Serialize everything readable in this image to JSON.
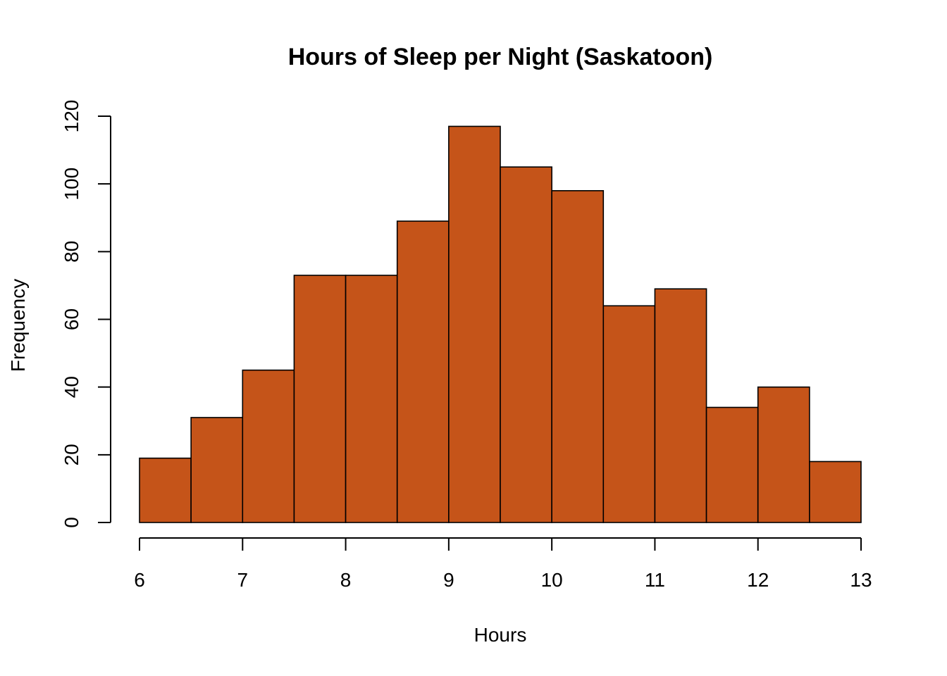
{
  "chart_data": {
    "type": "bar",
    "subtype": "histogram",
    "title": "Hours of Sleep per Night (Saskatoon)",
    "xlabel": "Hours",
    "ylabel": "Frequency",
    "bin_edges": [
      6,
      6.5,
      7,
      7.5,
      8,
      8.5,
      9,
      9.5,
      10,
      10.5,
      11,
      11.5,
      12,
      12.5,
      13
    ],
    "values": [
      19,
      31,
      45,
      73,
      73,
      89,
      117,
      105,
      98,
      64,
      69,
      34,
      40,
      18
    ],
    "xlim": [
      6,
      13
    ],
    "ylim": [
      0,
      120
    ],
    "x_ticks": [
      6,
      7,
      8,
      9,
      10,
      11,
      12,
      13
    ],
    "y_ticks": [
      0,
      20,
      40,
      60,
      80,
      100,
      120
    ],
    "bar_color": "#C55419",
    "bar_edge_color": "#000000",
    "grid": false,
    "legend": "none"
  }
}
